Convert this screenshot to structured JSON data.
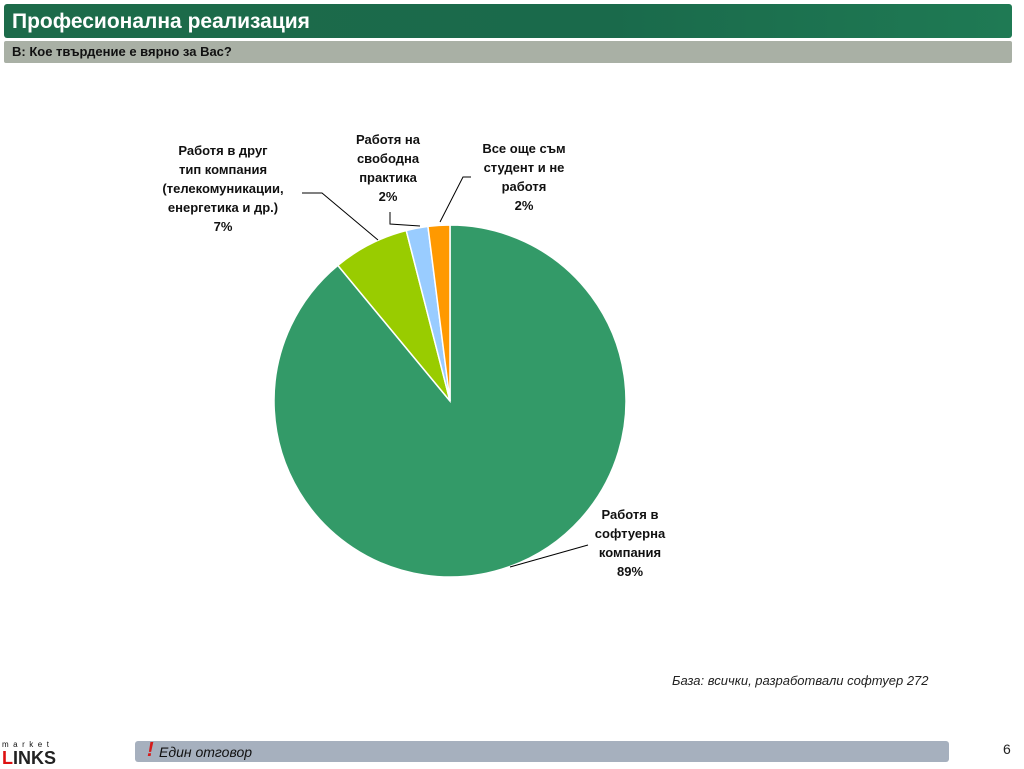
{
  "header": {
    "title": "Професионална реализация",
    "question": "В: Кое твърдение е вярно за Вас?"
  },
  "chart_data": {
    "type": "pie",
    "title": "",
    "slices": [
      {
        "label_lines": [
          "Работя в",
          "софтуерна",
          "компания",
          "89%"
        ],
        "value": 89,
        "color": "#339a68"
      },
      {
        "label_lines": [
          "Работя в друг",
          "тип компания",
          "(телекомуникации,",
          "енергетика и др.)",
          "7%"
        ],
        "value": 7,
        "color": "#99cc00"
      },
      {
        "label_lines": [
          "Работя на",
          "свободна",
          "практика",
          "2%"
        ],
        "value": 2,
        "color": "#99ccff"
      },
      {
        "label_lines": [
          "Все още съм",
          "студент и не",
          "работя",
          "2%"
        ],
        "value": 2,
        "color": "#ff9900"
      }
    ]
  },
  "base_note": "База: всички, разработвали софтуер 272",
  "footer": {
    "exclamation": "!",
    "text": "Един отговор",
    "page_number": "6"
  },
  "logo": {
    "top_text": "market",
    "main_red": "L",
    "main_rest": "INKS"
  }
}
